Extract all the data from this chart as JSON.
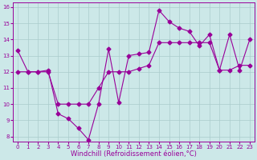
{
  "xlabel": "Windchill (Refroidissement éolien,°C)",
  "background_color": "#cce8e8",
  "line_color": "#990099",
  "grid_color": "#aacccc",
  "xlim": [
    -0.5,
    23.5
  ],
  "ylim": [
    7.7,
    16.3
  ],
  "xticks": [
    0,
    1,
    2,
    3,
    4,
    5,
    6,
    7,
    8,
    9,
    10,
    11,
    12,
    13,
    14,
    15,
    16,
    17,
    18,
    19,
    20,
    21,
    22,
    23
  ],
  "yticks": [
    8,
    9,
    10,
    11,
    12,
    13,
    14,
    15,
    16
  ],
  "x_line1": [
    0,
    1,
    2,
    3,
    4,
    5,
    6,
    7,
    8,
    9,
    10,
    11,
    12,
    13,
    14,
    15,
    16,
    17,
    18,
    19,
    20,
    21,
    22,
    23
  ],
  "y_line1": [
    13.3,
    12.0,
    12.0,
    12.1,
    9.4,
    9.1,
    8.5,
    7.8,
    10.0,
    13.4,
    10.1,
    13.0,
    13.1,
    13.2,
    15.8,
    15.1,
    14.7,
    14.5,
    13.6,
    14.3,
    12.1,
    14.3,
    12.1,
    14.0
  ],
  "x_line2": [
    0,
    1,
    2,
    3,
    4,
    5,
    6,
    7,
    8,
    9,
    10,
    11,
    12,
    13,
    14,
    15,
    16,
    17,
    18,
    19,
    20,
    21,
    22,
    23
  ],
  "y_line2": [
    12.0,
    12.0,
    12.0,
    12.0,
    10.0,
    10.0,
    10.0,
    10.0,
    11.0,
    12.0,
    12.0,
    12.0,
    12.2,
    12.4,
    13.8,
    13.8,
    13.8,
    13.8,
    13.8,
    13.8,
    12.1,
    12.1,
    12.4,
    12.4
  ],
  "marker": "D",
  "markersize": 2.5,
  "linewidth": 0.8,
  "tick_fontsize": 5,
  "xlabel_fontsize": 6
}
